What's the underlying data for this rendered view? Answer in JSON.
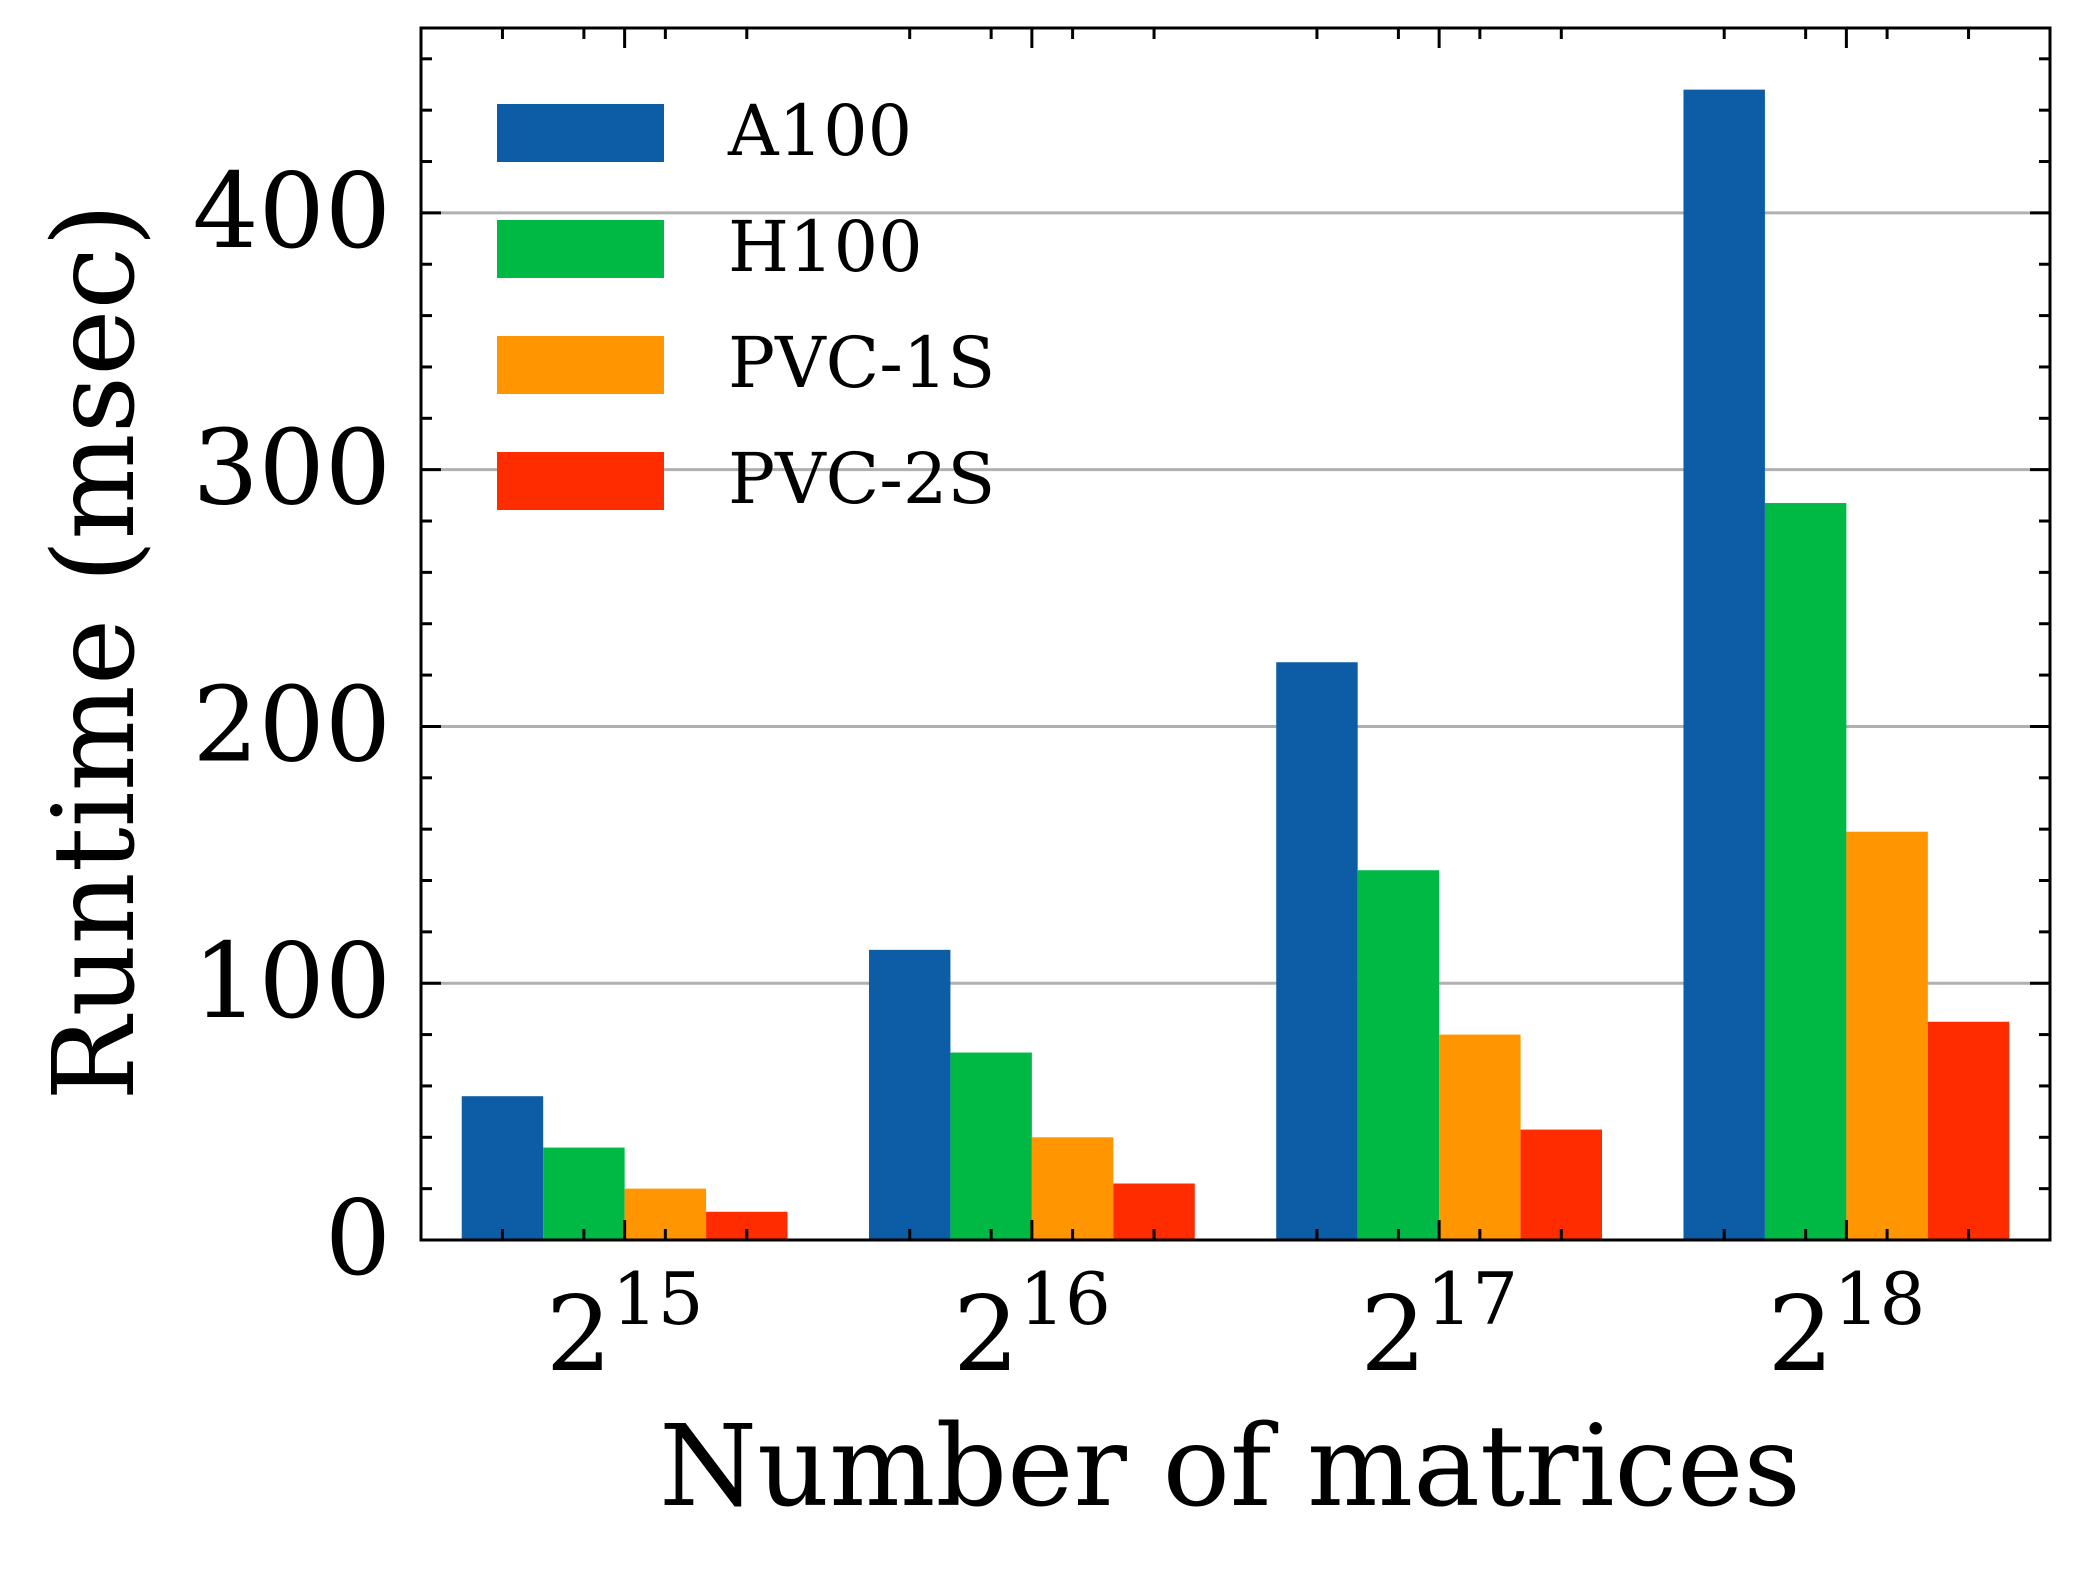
{
  "chart_data": {
    "type": "bar",
    "title": "",
    "xlabel": "Number of matrices",
    "ylabel": "Runtime (msec)",
    "categories": [
      {
        "base": "2",
        "exp": "15"
      },
      {
        "base": "2",
        "exp": "16"
      },
      {
        "base": "2",
        "exp": "17"
      },
      {
        "base": "2",
        "exp": "18"
      }
    ],
    "series": [
      {
        "name": "A100",
        "color": "#0C5DA5",
        "values": [
          56,
          113,
          225,
          448
        ]
      },
      {
        "name": "H100",
        "color": "#00B945",
        "values": [
          36,
          73,
          144,
          287
        ]
      },
      {
        "name": "PVC-1S",
        "color": "#FF9500",
        "values": [
          20,
          40,
          80,
          159
        ]
      },
      {
        "name": "PVC-2S",
        "color": "#FF2C00",
        "values": [
          11,
          22,
          43,
          85
        ]
      }
    ],
    "yticks": [
      0,
      100,
      200,
      300,
      400
    ],
    "ylim": [
      0,
      472
    ],
    "grid": "y-major",
    "legend_position": "top-left"
  }
}
